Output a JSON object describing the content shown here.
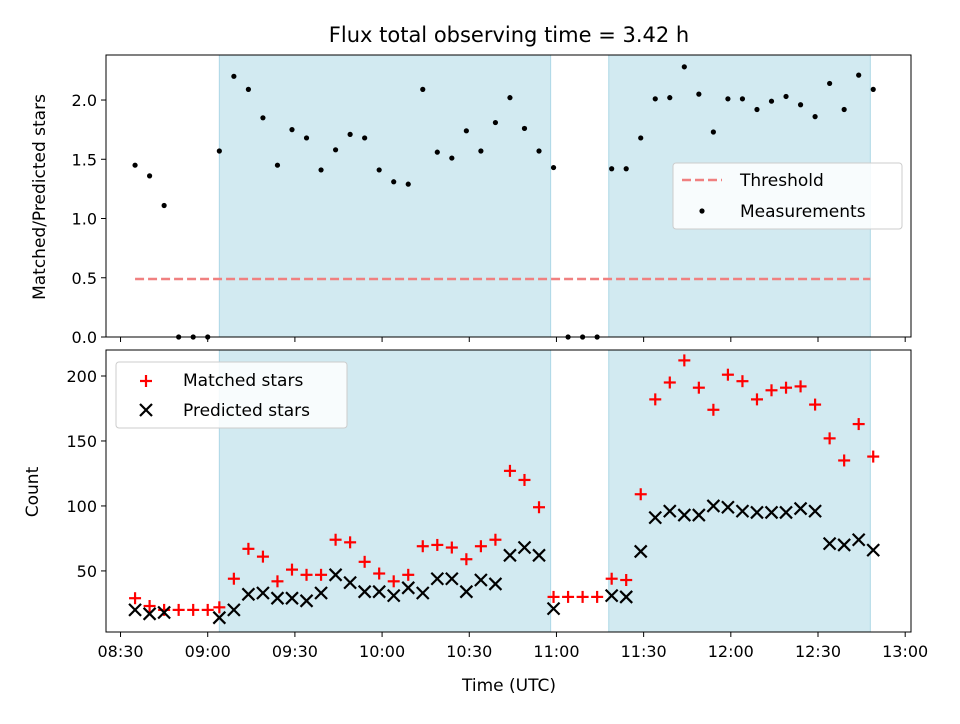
{
  "title": "Flux total observing time = 3.42 h",
  "colors": {
    "observing_band": "#add8e6",
    "threshold": "#f08080",
    "measurements": "#000000",
    "matched": "#ff0000",
    "predicted": "#000000"
  },
  "chart_data": [
    {
      "type": "scatter",
      "ylabel": "Matched/Predicted stars",
      "ylim": [
        0,
        2.38
      ],
      "yticks": [
        "0.0",
        "0.5",
        "1.0",
        "1.5",
        "2.0"
      ],
      "legend_position": "center-right",
      "observing_bands": [
        [
          "09:04",
          "10:58"
        ],
        [
          "11:18",
          "12:48"
        ]
      ],
      "threshold": {
        "name": "Threshold",
        "y": 0.49,
        "x_range": [
          "08:35",
          "12:48"
        ]
      },
      "series": [
        {
          "name": "Measurements",
          "x": [
            "08:35",
            "08:40",
            "08:45",
            "08:50",
            "08:55",
            "09:00",
            "09:04",
            "09:09",
            "09:14",
            "09:19",
            "09:24",
            "09:29",
            "09:34",
            "09:39",
            "09:44",
            "09:49",
            "09:54",
            "09:59",
            "10:04",
            "10:09",
            "10:14",
            "10:19",
            "10:24",
            "10:29",
            "10:34",
            "10:39",
            "10:44",
            "10:49",
            "10:54",
            "10:59",
            "11:04",
            "11:09",
            "11:14",
            "11:19",
            "11:24",
            "11:29",
            "11:34",
            "11:39",
            "11:44",
            "11:49",
            "11:54",
            "11:59",
            "12:04",
            "12:09",
            "12:14",
            "12:19",
            "12:24",
            "12:29",
            "12:34",
            "12:39",
            "12:44",
            "12:49"
          ],
          "y": [
            1.45,
            1.36,
            1.11,
            0,
            0,
            0,
            1.57,
            2.2,
            2.09,
            1.85,
            1.45,
            1.75,
            1.68,
            1.41,
            1.58,
            1.71,
            1.68,
            1.41,
            1.31,
            1.29,
            2.09,
            1.56,
            1.51,
            1.74,
            1.57,
            1.81,
            2.02,
            1.76,
            1.57,
            1.43,
            0,
            0,
            0,
            1.42,
            1.42,
            1.68,
            2.01,
            2.02,
            2.28,
            2.05,
            1.73,
            2.01,
            2.01,
            1.92,
            1.99,
            2.03,
            1.96,
            1.86,
            2.14,
            1.92,
            2.21,
            2.09
          ]
        }
      ]
    },
    {
      "type": "scatter",
      "xlabel": "Time (UTC)",
      "ylabel": "Count",
      "ylim": [
        3,
        220
      ],
      "xlim": [
        "08:25",
        "13:02"
      ],
      "xticks": [
        "08:30",
        "09:00",
        "09:30",
        "10:00",
        "10:30",
        "11:00",
        "11:30",
        "12:00",
        "12:30",
        "13:00"
      ],
      "yticks": [
        "50",
        "100",
        "150",
        "200"
      ],
      "legend_position": "upper-left",
      "observing_bands": [
        [
          "09:04",
          "10:58"
        ],
        [
          "11:18",
          "12:48"
        ]
      ],
      "series": [
        {
          "name": "Matched stars",
          "x": [
            "08:35",
            "08:40",
            "08:45",
            "08:50",
            "08:55",
            "09:00",
            "09:04",
            "09:09",
            "09:14",
            "09:19",
            "09:24",
            "09:29",
            "09:34",
            "09:39",
            "09:44",
            "09:49",
            "09:54",
            "09:59",
            "10:04",
            "10:09",
            "10:14",
            "10:19",
            "10:24",
            "10:29",
            "10:34",
            "10:39",
            "10:44",
            "10:49",
            "10:54",
            "10:59",
            "11:04",
            "11:09",
            "11:14",
            "11:19",
            "11:24",
            "11:29",
            "11:34",
            "11:39",
            "11:44",
            "11:49",
            "11:54",
            "11:59",
            "12:04",
            "12:09",
            "12:14",
            "12:19",
            "12:24",
            "12:29",
            "12:34",
            "12:39",
            "12:44",
            "12:49"
          ],
          "y": [
            29,
            23,
            20,
            20,
            20,
            20,
            22,
            44,
            67,
            61,
            42,
            51,
            47,
            47,
            74,
            72,
            57,
            48,
            42,
            47,
            69,
            70,
            68,
            59,
            69,
            74,
            127,
            120,
            99,
            30,
            30,
            30,
            30,
            44,
            43,
            109,
            182,
            195,
            212,
            191,
            174,
            201,
            196,
            182,
            189,
            191,
            192,
            178,
            152,
            135,
            163,
            138
          ]
        },
        {
          "name": "Predicted stars",
          "x": [
            "08:35",
            "08:40",
            "08:45",
            "08:50",
            "08:55",
            "09:00",
            "09:04",
            "09:09",
            "09:14",
            "09:19",
            "09:24",
            "09:29",
            "09:34",
            "09:39",
            "09:44",
            "09:49",
            "09:54",
            "09:59",
            "10:04",
            "10:09",
            "10:14",
            "10:19",
            "10:24",
            "10:29",
            "10:34",
            "10:39",
            "10:44",
            "10:49",
            "10:54",
            "10:59",
            "11:04",
            "11:09",
            "11:14",
            "11:19",
            "11:24",
            "11:29",
            "11:34",
            "11:39",
            "11:44",
            "11:49",
            "11:54",
            "11:59",
            "12:04",
            "12:09",
            "12:14",
            "12:19",
            "12:24",
            "12:29",
            "12:34",
            "12:39",
            "12:44",
            "12:49"
          ],
          "y": [
            20,
            17,
            18,
            null,
            null,
            null,
            14,
            20,
            32,
            33,
            29,
            29,
            27,
            33,
            47,
            41,
            34,
            34,
            31,
            37,
            33,
            44,
            44,
            34,
            43,
            40,
            62,
            68,
            62,
            21,
            null,
            null,
            null,
            31,
            30,
            65,
            91,
            96,
            93,
            93,
            100,
            99,
            96,
            95,
            95,
            95,
            98,
            96,
            71,
            70,
            74,
            66
          ]
        }
      ]
    }
  ]
}
